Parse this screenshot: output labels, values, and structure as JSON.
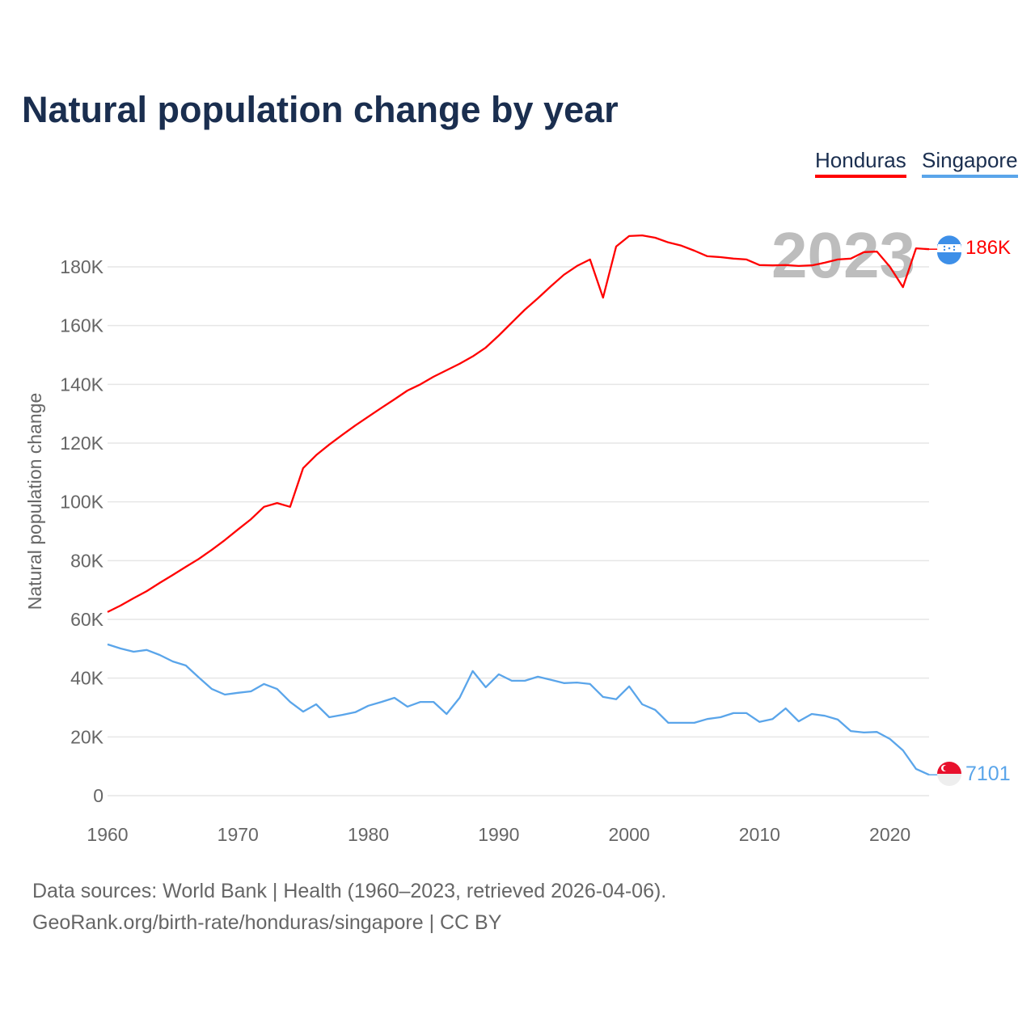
{
  "title": "Natural population change by year",
  "legend": [
    {
      "label": "Honduras",
      "color": "#ff0000"
    },
    {
      "label": "Singapore",
      "color": "#5aa5ea"
    }
  ],
  "year_watermark": "2023",
  "end_labels": {
    "honduras": "186K",
    "singapore": "7101"
  },
  "sources": {
    "line1": "Data sources: World Bank | Health (1960–2023, retrieved 2026-04-06).",
    "line2": "GeoRank.org/birth-rate/honduras/singapore | CC BY"
  },
  "chart_data": {
    "type": "line",
    "title": "Natural population change by year",
    "xlabel": "",
    "ylabel": "Natural population change",
    "xlim": [
      1960,
      2023
    ],
    "ylim": [
      0,
      180
    ],
    "y_unit": "thousands",
    "grid": true,
    "legend_position": "top-right",
    "x_ticks": [
      1960,
      1970,
      1980,
      1990,
      2000,
      2010,
      2020
    ],
    "x_tick_labels": [
      "1960",
      "1970",
      "1980",
      "1990",
      "2000",
      "2010",
      "2020"
    ],
    "y_ticks": [
      0,
      20,
      40,
      60,
      80,
      100,
      120,
      140,
      160,
      180
    ],
    "y_tick_labels": [
      "0",
      "20K",
      "40K",
      "60K",
      "80K",
      "100K",
      "120K",
      "140K",
      "160K",
      "180K"
    ],
    "x_start": 1960,
    "series": [
      {
        "name": "Honduras",
        "color": "#ff0000",
        "values": [
          62.5,
          64.7,
          67.2,
          69.6,
          72.4,
          75.1,
          77.9,
          80.6,
          83.7,
          87,
          90.6,
          94.1,
          98.3,
          99.6,
          98.3,
          111.5,
          115.9,
          119.5,
          122.8,
          126,
          129,
          132,
          134.9,
          137.9,
          140,
          142.6,
          144.8,
          147,
          149.5,
          152.5,
          156.6,
          161,
          165.4,
          169.3,
          173.4,
          177.3,
          180.3,
          182.5,
          169.5,
          186.9,
          190.5,
          190.7,
          189.9,
          188.3,
          187.2,
          185.5,
          183.6,
          183.3,
          182.8,
          182.5,
          180.6,
          180.5,
          180.6,
          180.3,
          180.5,
          181.4,
          182.5,
          182.8,
          185,
          185.2,
          180,
          173.1,
          186.3,
          186
        ]
      },
      {
        "name": "Singapore",
        "color": "#5aa5ea",
        "values": [
          51.5,
          50.1,
          49,
          49.6,
          47.9,
          45.7,
          44.3,
          40.2,
          36.3,
          34.4,
          35,
          35.5,
          38,
          36.3,
          31.9,
          28.6,
          31.1,
          26.7,
          27.5,
          28.4,
          30.6,
          31.9,
          33.3,
          30.3,
          31.9,
          31.9,
          27.8,
          33.3,
          42.4,
          36.9,
          41.3,
          39.1,
          39.1,
          40.5,
          39.4,
          38.3,
          38.5,
          38,
          33.6,
          32.8,
          37.2,
          31.1,
          29.2,
          24.8,
          24.8,
          24.8,
          26.1,
          26.7,
          28.1,
          28.1,
          25.1,
          26.1,
          29.7,
          25.3,
          27.8,
          27.2,
          25.9,
          22,
          21.5,
          21.7,
          19.3,
          15.4,
          9.1,
          7.101
        ]
      }
    ]
  }
}
